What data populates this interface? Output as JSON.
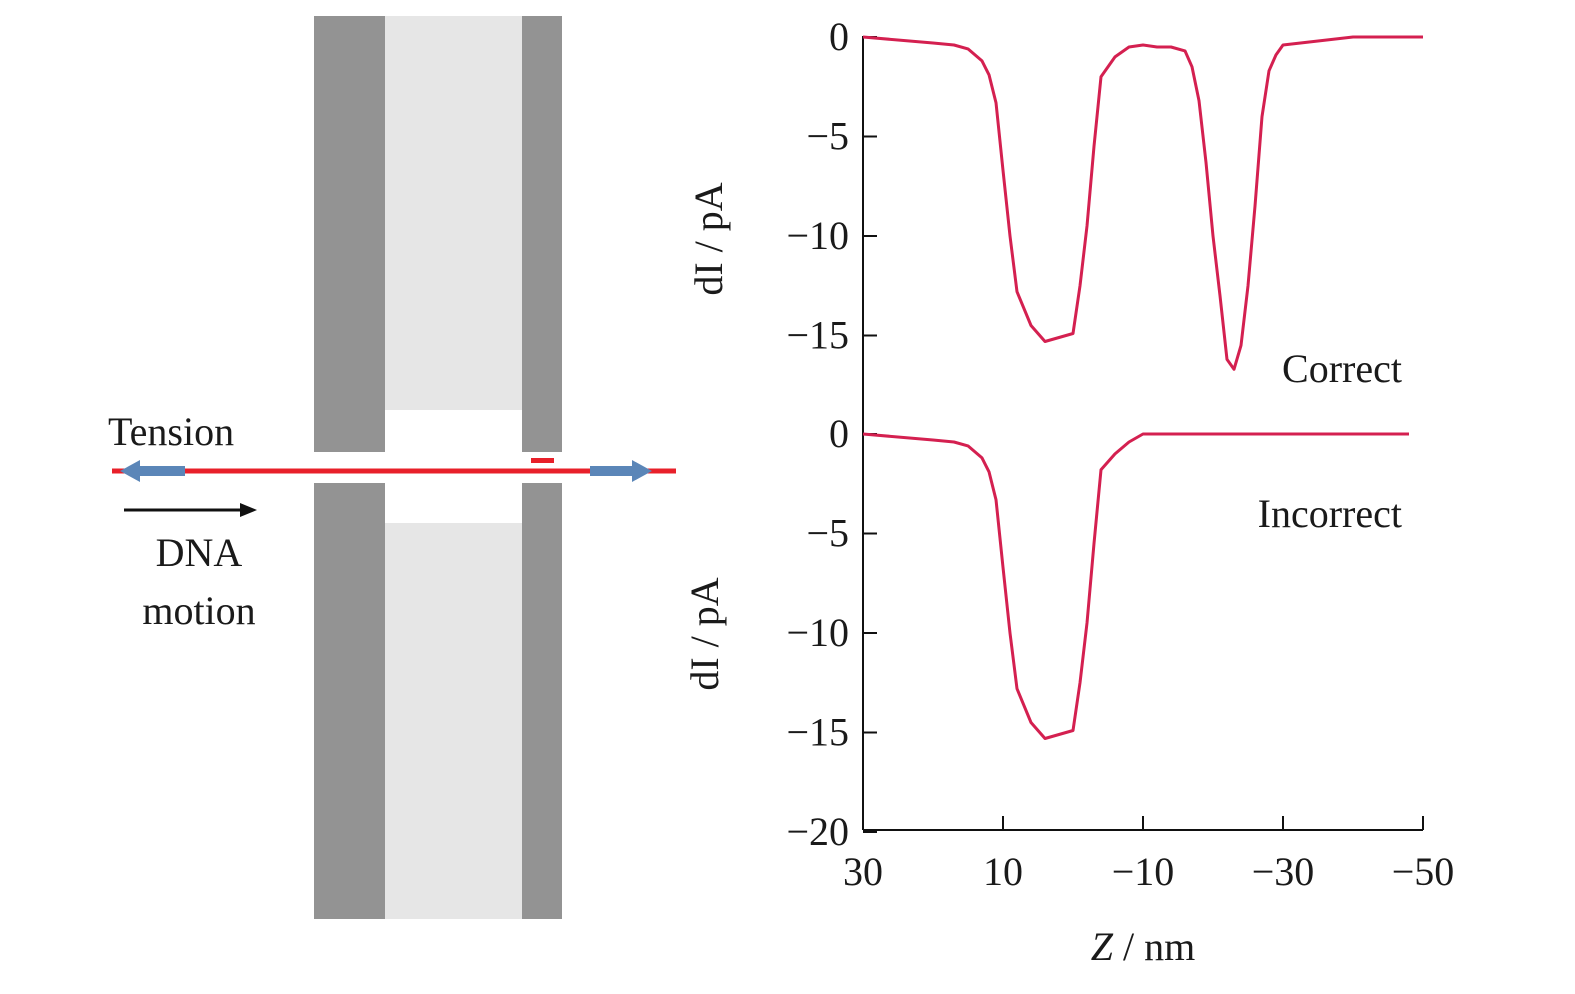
{
  "diagram": {
    "tension_label": "Tension",
    "motion_label_line1": "DNA",
    "motion_label_line2": "motion",
    "colors": {
      "electrode": "#939393",
      "gap_fill": "#e6e6e6",
      "dna": "#e8202a",
      "tension_arrow": "#5b86b8",
      "motion_arrow": "#111111"
    }
  },
  "chart_data": [
    {
      "type": "line",
      "panel": "top",
      "ylabel": "dI / pA",
      "annotation": "Correct",
      "xlim": [
        30,
        -50
      ],
      "ylim": [
        -15,
        0
      ],
      "yticks": [
        0,
        -5,
        -10,
        -15
      ],
      "series": [
        {
          "color": "#d42050",
          "x": [
            30,
            20,
            17,
            15,
            13,
            12,
            11,
            10,
            9,
            8,
            6,
            4,
            2,
            0,
            -1,
            -2,
            -3,
            -4,
            -6,
            -8,
            -10,
            -12,
            -14,
            -16,
            -17,
            -18,
            -19,
            -20,
            -21,
            -22,
            -23,
            -24,
            -25,
            -26,
            -27,
            -28,
            -29,
            -30,
            -35,
            -40,
            -45,
            -50
          ],
          "y": [
            0,
            -0.3,
            -0.4,
            -0.6,
            -1.2,
            -1.9,
            -3.3,
            -6.7,
            -10,
            -12.8,
            -14.5,
            -15.3,
            -15.1,
            -14.9,
            -12.5,
            -9.5,
            -5.5,
            -2,
            -1,
            -0.5,
            -0.4,
            -0.5,
            -0.5,
            -0.7,
            -1.5,
            -3.2,
            -6.3,
            -10,
            -13,
            -16.2,
            -16.7,
            -15.5,
            -12.5,
            -8.5,
            -4,
            -1.7,
            -0.9,
            -0.4,
            -0.2,
            0,
            0,
            0
          ]
        }
      ]
    },
    {
      "type": "line",
      "panel": "bottom",
      "ylabel": "dI / pA",
      "xlabel": "Z / nm",
      "annotation": "Incorrect",
      "xlim": [
        30,
        -50
      ],
      "ylim": [
        -20,
        0
      ],
      "xticks": [
        30,
        10,
        -10,
        -30,
        -50
      ],
      "yticks": [
        0,
        -5,
        -10,
        -15,
        -20
      ],
      "series": [
        {
          "color": "#d42050",
          "x": [
            30,
            20,
            17,
            15,
            13,
            12,
            11,
            10,
            9,
            8,
            6,
            4,
            2,
            0,
            -1,
            -2,
            -3,
            -4,
            -6,
            -8,
            -10,
            -15,
            -20,
            -30,
            -40,
            -48
          ],
          "y": [
            0,
            -0.3,
            -0.4,
            -0.6,
            -1.2,
            -1.9,
            -3.3,
            -6.7,
            -10,
            -12.8,
            -14.5,
            -15.3,
            -15.1,
            -14.9,
            -12.5,
            -9.5,
            -5.5,
            -1.8,
            -1,
            -0.4,
            0,
            0,
            0,
            0,
            0,
            0
          ]
        }
      ]
    }
  ]
}
